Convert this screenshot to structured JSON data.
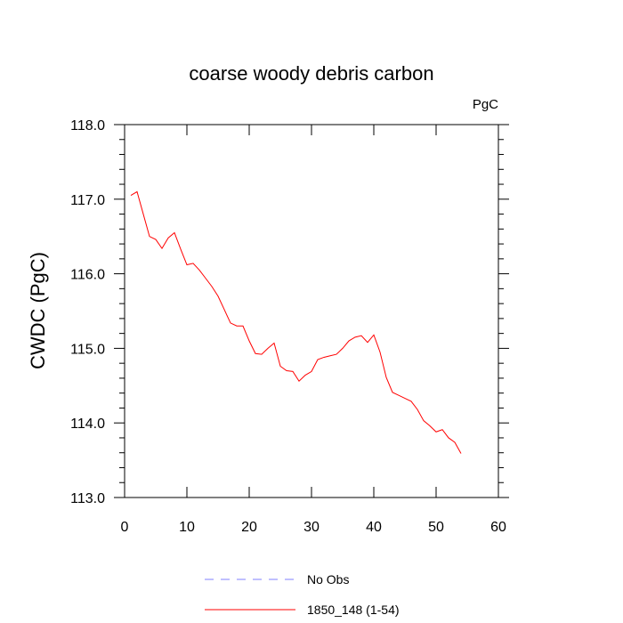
{
  "chart_data": {
    "type": "line",
    "title": "coarse woody debris carbon",
    "units_label": "PgC",
    "xlabel": "",
    "ylabel": "CWDC  (PgC)",
    "xlim": [
      0,
      60
    ],
    "ylim": [
      113.0,
      118.0
    ],
    "xticks": [
      0,
      10,
      20,
      30,
      40,
      50,
      60
    ],
    "xtick_labels": [
      "0",
      "10",
      "20",
      "30",
      "40",
      "50",
      "60"
    ],
    "yticks": [
      113.0,
      114.0,
      115.0,
      116.0,
      117.0,
      118.0
    ],
    "ytick_labels": [
      "113.0",
      "114.0",
      "115.0",
      "116.0",
      "117.0",
      "118.0"
    ],
    "grid": false,
    "legend_position": "bottom-center",
    "series": [
      {
        "name": "No Obs",
        "color": "#8080ff",
        "dash": "dashed",
        "x": [],
        "values": []
      },
      {
        "name": "1850_148 (1-54)",
        "color": "#ff0000",
        "dash": "solid",
        "x": [
          1,
          2,
          3,
          4,
          5,
          6,
          7,
          8,
          9,
          10,
          11,
          12,
          13,
          14,
          15,
          16,
          17,
          18,
          19,
          20,
          21,
          22,
          23,
          24,
          25,
          26,
          27,
          28,
          29,
          30,
          31,
          32,
          33,
          34,
          35,
          36,
          37,
          38,
          39,
          40,
          41,
          42,
          43,
          44,
          45,
          46,
          47,
          48,
          49,
          50,
          51,
          52,
          53,
          54
        ],
        "values": [
          117.05,
          117.1,
          116.8,
          116.5,
          116.46,
          116.34,
          116.48,
          116.55,
          116.33,
          116.12,
          116.14,
          116.05,
          115.94,
          115.83,
          115.7,
          115.52,
          115.34,
          115.3,
          115.3,
          115.1,
          114.93,
          114.92,
          115.0,
          115.07,
          114.76,
          114.7,
          114.69,
          114.56,
          114.64,
          114.69,
          114.85,
          114.88,
          114.9,
          114.92,
          115.0,
          115.1,
          115.15,
          115.17,
          115.08,
          115.18,
          114.95,
          114.61,
          114.41,
          114.37,
          114.33,
          114.29,
          114.18,
          114.03,
          113.96,
          113.88,
          113.91,
          113.8,
          113.74,
          113.59
        ]
      }
    ]
  }
}
